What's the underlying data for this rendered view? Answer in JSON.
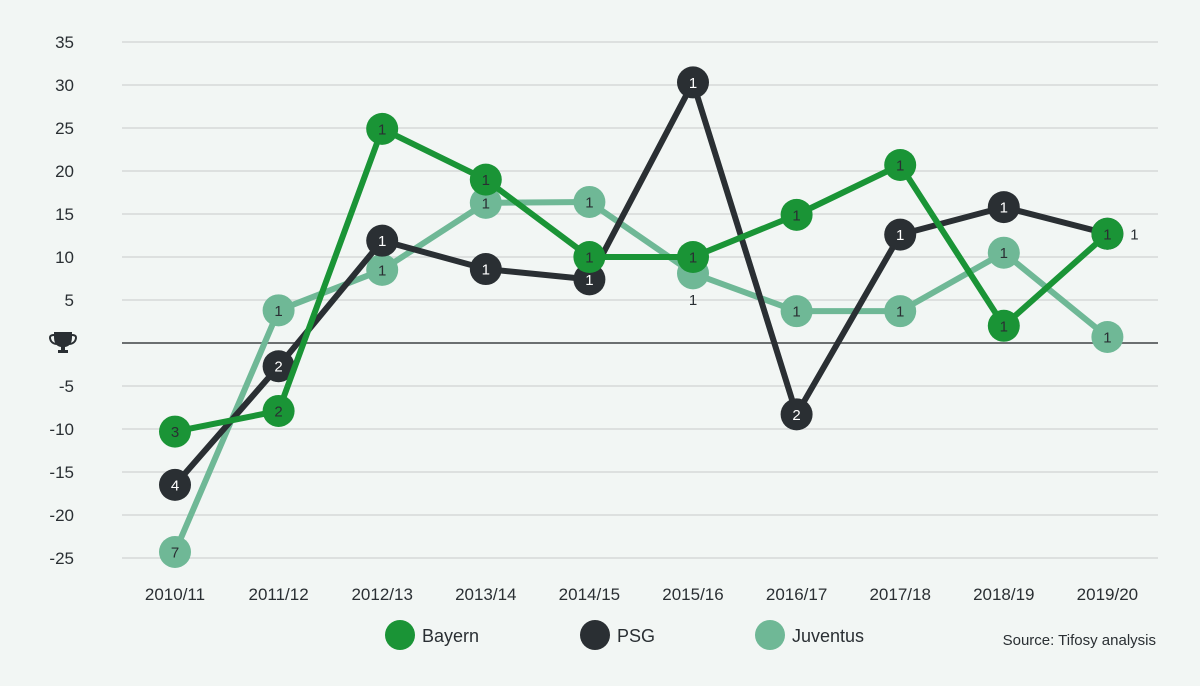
{
  "chart_data": {
    "type": "line",
    "title": "",
    "xlabel": "",
    "ylabel": "",
    "ylim": [
      -25,
      35
    ],
    "yticks": [
      35,
      30,
      25,
      20,
      15,
      10,
      5,
      0,
      -5,
      -10,
      -15,
      -20,
      -25
    ],
    "zero_icon": "trophy-icon",
    "grid": true,
    "legend_placement": "bottom",
    "categories": [
      "2010/11",
      "2011/12",
      "2012/13",
      "2013/14",
      "2014/15",
      "2015/16",
      "2016/17",
      "2017/18",
      "2018/19",
      "2019/20"
    ],
    "series": [
      {
        "name": "Juventus",
        "color": "#6fb896",
        "values": [
          -24.3,
          3.8,
          8.5,
          16.3,
          16.4,
          8.1,
          3.7,
          3.7,
          10.5,
          0.7
        ],
        "labels": [
          "7",
          "1",
          "1",
          "1",
          "1",
          "1",
          "1",
          "1",
          "1",
          "1"
        ]
      },
      {
        "name": "PSG",
        "color": "#2a2f33",
        "values": [
          -16.5,
          -2.7,
          11.9,
          8.6,
          7.4,
          30.3,
          -8.3,
          12.6,
          15.8,
          12.7
        ],
        "labels": [
          "4",
          "2",
          "1",
          "1",
          "1",
          "1",
          "2",
          "1",
          "1",
          "1"
        ]
      },
      {
        "name": "Bayern",
        "color": "#1a9436",
        "values": [
          -10.3,
          -7.9,
          24.9,
          19,
          10,
          10,
          14.9,
          20.7,
          2,
          12.7
        ],
        "labels": [
          "3",
          "2",
          "1",
          "1",
          "1",
          "1",
          "1",
          "1",
          "1",
          "1"
        ]
      }
    ],
    "legend_order": [
      "Bayern",
      "PSG",
      "Juventus"
    ],
    "source": "Source: Tifosy analysis"
  }
}
